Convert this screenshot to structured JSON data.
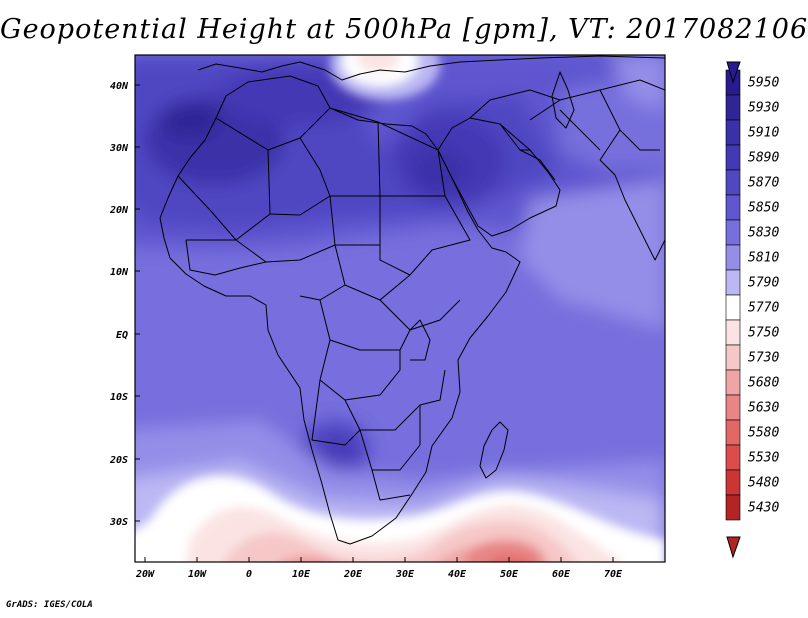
{
  "title": "Geopotential Height at 500hPa [gpm], VT: 2017082106",
  "credit": "GrADS: IGES/COLA",
  "map": {
    "lat_labels": [
      "40N",
      "30N",
      "20N",
      "10N",
      "EQ",
      "10S",
      "20S",
      "30S"
    ],
    "lon_labels": [
      "20W",
      "10W",
      "0",
      "10E",
      "20E",
      "30E",
      "40E",
      "50E",
      "60E",
      "70E"
    ]
  },
  "colorbar": {
    "levels": [
      {
        "label": "5950",
        "color": "#271b8f"
      },
      {
        "label": "5930",
        "color": "#2f2596"
      },
      {
        "label": "5910",
        "color": "#3a31a8"
      },
      {
        "label": "5890",
        "color": "#4439b5"
      },
      {
        "label": "5870",
        "color": "#5047c2"
      },
      {
        "label": "5850",
        "color": "#5f57cf"
      },
      {
        "label": "5830",
        "color": "#766fdd"
      },
      {
        "label": "5810",
        "color": "#948ee8"
      },
      {
        "label": "5790",
        "color": "#bcb8f3"
      },
      {
        "label": "5770",
        "color": "#ffffff"
      },
      {
        "label": "5750",
        "color": "#fbe3e3"
      },
      {
        "label": "5730",
        "color": "#f6c7c7"
      },
      {
        "label": "5680",
        "color": "#efa5a5"
      },
      {
        "label": "5630",
        "color": "#e88585"
      },
      {
        "label": "5580",
        "color": "#e26868"
      },
      {
        "label": "5530",
        "color": "#dc4c4c"
      },
      {
        "label": "5480",
        "color": "#cc3535"
      },
      {
        "label": "5430",
        "color": "#b52424"
      }
    ]
  }
}
